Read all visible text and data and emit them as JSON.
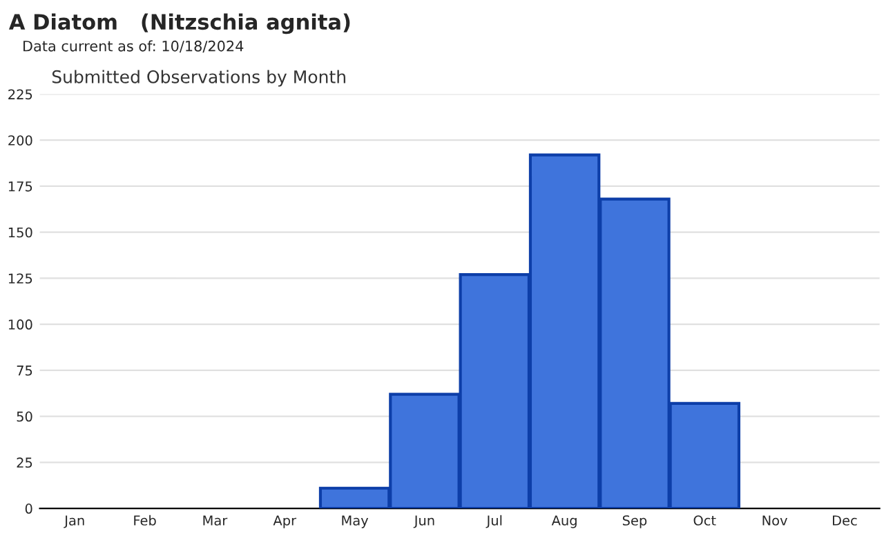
{
  "chart_data": {
    "type": "bar",
    "title": "A Diatom   (Nitzschia agnita)",
    "subtitle": "Data current as of: 10/18/2024",
    "annotations": [
      "Submitted Observations by Month"
    ],
    "categories": [
      "Jan",
      "Feb",
      "Mar",
      "Apr",
      "May",
      "Jun",
      "Jul",
      "Aug",
      "Sep",
      "Oct",
      "Nov",
      "Dec"
    ],
    "values": [
      0,
      0,
      0,
      0,
      11,
      62,
      127,
      192,
      168,
      57,
      0,
      0
    ],
    "color": "#3f74dc",
    "ylim": [
      0,
      225
    ],
    "yticks": [
      0,
      25,
      50,
      75,
      100,
      125,
      150,
      175,
      200,
      225
    ],
    "grid": "y"
  }
}
